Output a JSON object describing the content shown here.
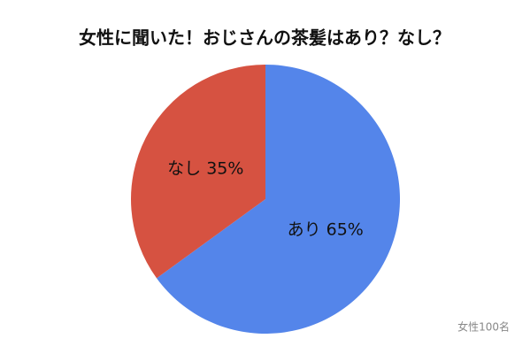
{
  "chart_data": {
    "type": "pie",
    "title": "女性に聞いた！おじさんの茶髪はあり？なし？",
    "categories": [
      "あり",
      "なし"
    ],
    "values": [
      65,
      35
    ],
    "value_labels": [
      "65%",
      "35%"
    ],
    "colors": [
      "#5485ea",
      "#d65241"
    ],
    "annotation": "女性100名"
  }
}
